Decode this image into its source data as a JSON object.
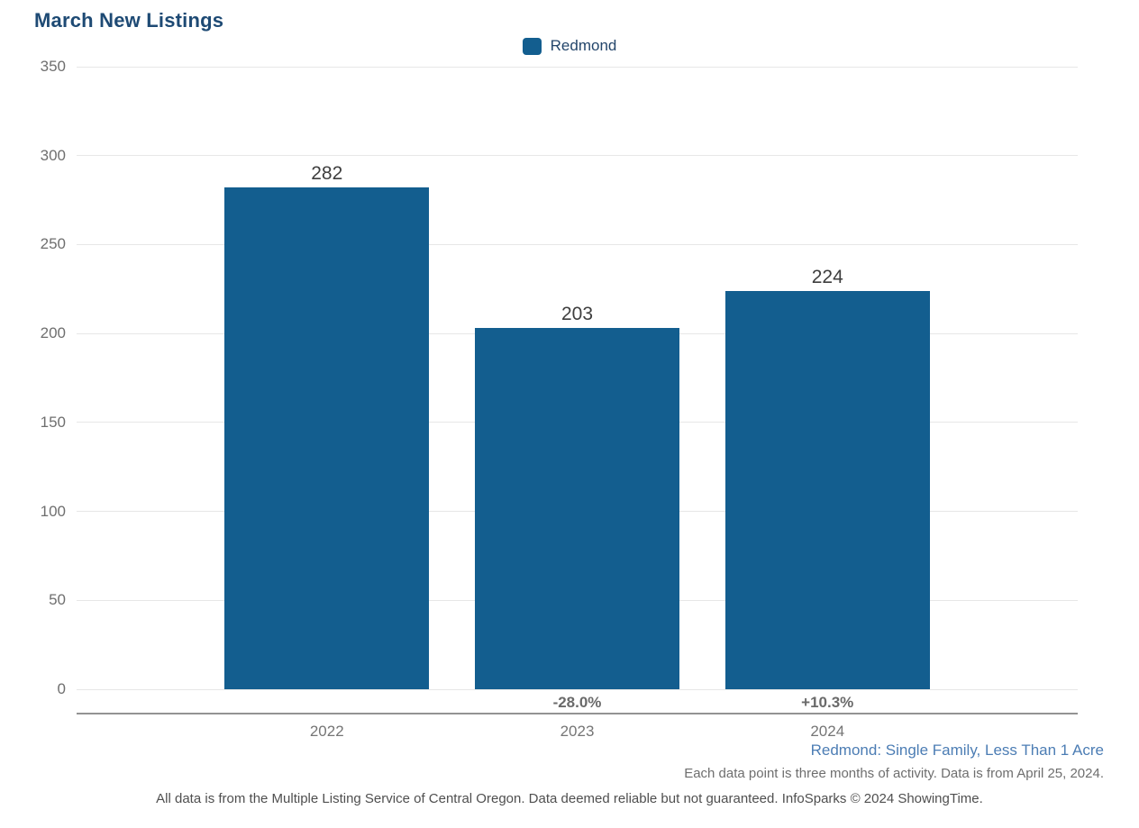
{
  "title": "March New Listings",
  "legend": {
    "label": "Redmond",
    "swatch_color": "#135E8F"
  },
  "chart_data": {
    "type": "bar",
    "title": "March New Listings",
    "categories": [
      "2022",
      "2023",
      "2024"
    ],
    "values": [
      282,
      203,
      224
    ],
    "value_labels": [
      "282",
      "203",
      "224"
    ],
    "change_labels": [
      "",
      "-28.0%",
      "+10.3%"
    ],
    "series": [
      {
        "name": "Redmond",
        "values": [
          282,
          203,
          224
        ]
      }
    ],
    "xlabel": "",
    "ylabel": "",
    "ylim": [
      0,
      350
    ],
    "ytick_step": 50,
    "ytick_labels": [
      "0",
      "50",
      "100",
      "150",
      "200",
      "250",
      "300",
      "350"
    ],
    "grid": true,
    "legend_position": "top-center",
    "bar_color": "#135E8F"
  },
  "footer": {
    "segment_label": "Redmond: Single Family, Less Than 1 Acre",
    "note": "Each data point is three months of activity. Data is from April 25, 2024.",
    "disclaimer": "All data is from the Multiple Listing Service of Central Oregon. Data deemed reliable but not guaranteed. InfoSparks © 2024 ShowingTime."
  },
  "colors": {
    "bar": "#135E8F",
    "title_text": "#1E4A74",
    "legend_text": "#24466B",
    "segment_link_blue": "#4C7DB4",
    "gridline": "#E7E7E7",
    "axis_line": "#939393",
    "tick_text": "#6F6F6F",
    "value_text": "#3E3E3E"
  }
}
